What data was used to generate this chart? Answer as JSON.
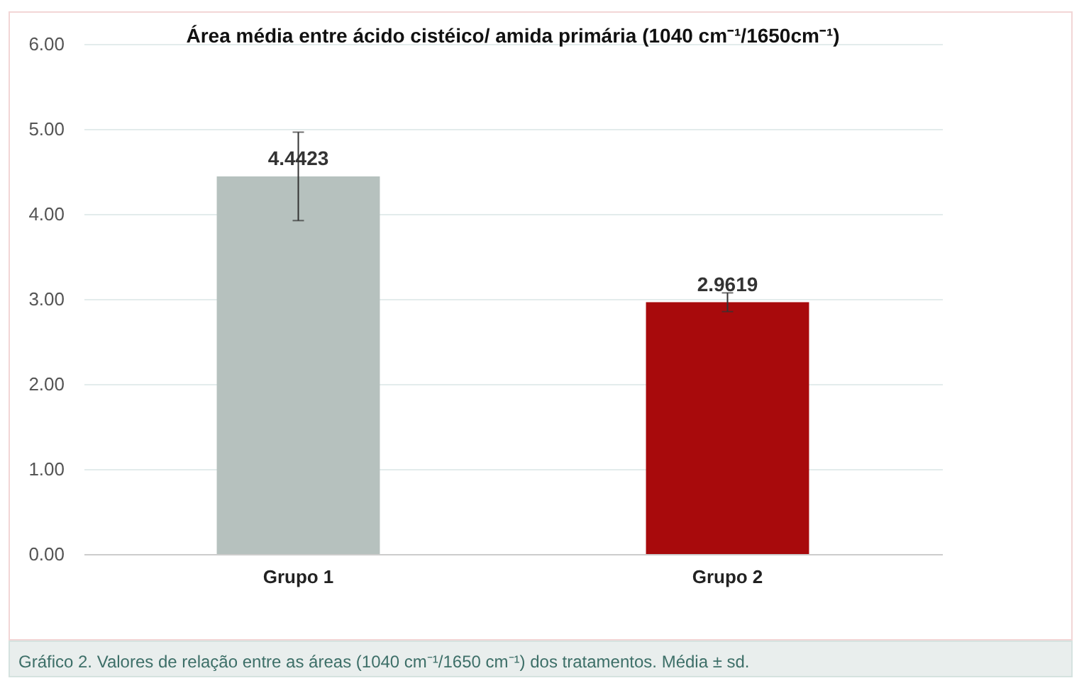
{
  "chart_data": {
    "type": "bar",
    "title": "Área média entre ácido cistéico/ amida primária (1040 cm⁻¹/1650cm⁻¹)",
    "categories": [
      "Grupo 1",
      "Grupo 2"
    ],
    "values": [
      4.4423,
      2.9619
    ],
    "colors": [
      "#b6c1be",
      "#a80a0c"
    ],
    "errors": [
      0.52,
      0.11
    ],
    "data_labels": true,
    "ylim": [
      0,
      6
    ],
    "yticks": [
      {
        "value": 0,
        "label": "0.00"
      },
      {
        "value": 1,
        "label": "1.00"
      },
      {
        "value": 2,
        "label": "2.00"
      },
      {
        "value": 3,
        "label": "3.00"
      },
      {
        "value": 4,
        "label": "4.00"
      },
      {
        "value": 5,
        "label": "5.00"
      },
      {
        "value": 6,
        "label": "6.00"
      }
    ],
    "grid": "y",
    "annotations": [
      "Gráfico 2. Valores de relação entre as áreas (1040 cm⁻¹/1650 cm⁻¹) dos tratamentos. Média ± sd."
    ]
  }
}
